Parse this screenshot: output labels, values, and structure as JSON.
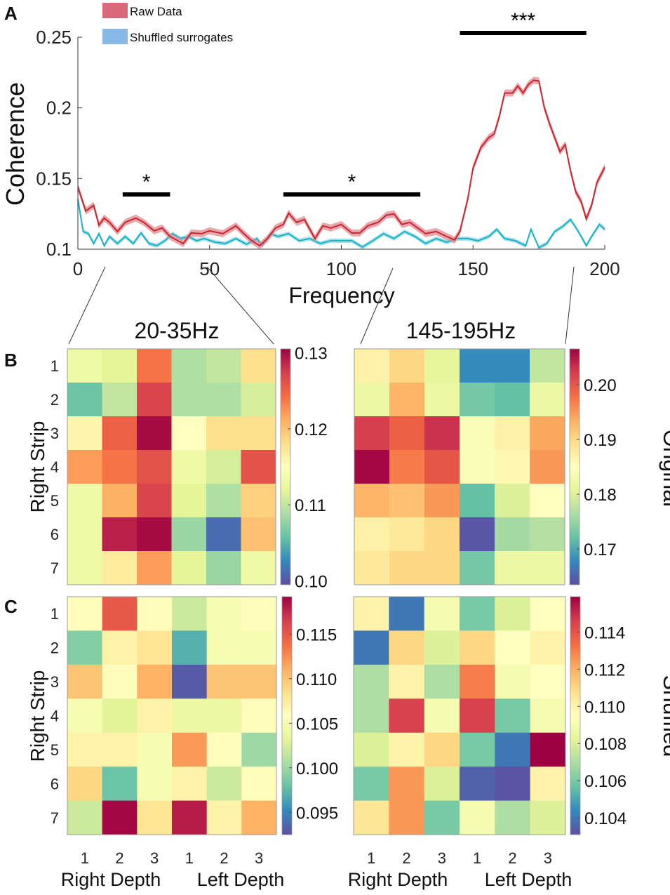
{
  "panel_labels": {
    "a": "A",
    "b": "B",
    "c": "C"
  },
  "colors": {
    "raw": "#c8262e",
    "raw_band": "#e08a90",
    "shuffled": "#17b3c8",
    "shuffled_band": "#8fd6e2",
    "legend_raw": "#d9697a",
    "legend_shuffled": "#86b9e6"
  },
  "colormap": [
    "#5e4fa2",
    "#3288bd",
    "#66c2a5",
    "#abdda4",
    "#e6f598",
    "#ffffbf",
    "#fee08b",
    "#fdae61",
    "#f46d43",
    "#d53e4f",
    "#9e0142"
  ],
  "chart_data": [
    {
      "type": "line",
      "xlabel": "Frequency",
      "ylabel": "Coherence",
      "xlim": [
        0,
        200
      ],
      "ylim": [
        0.1,
        0.25
      ],
      "xticks": [
        "0",
        "50",
        "100",
        "150",
        "200"
      ],
      "yticks": [
        "0.1",
        "0.15",
        "0.2",
        "0.25"
      ],
      "legend": [
        "Raw Data",
        "Shuffled surrogates"
      ],
      "legend_position": "top-left",
      "significance": [
        {
          "label": "*",
          "from": 17,
          "to": 35
        },
        {
          "label": "*",
          "from": 78,
          "to": 130
        },
        {
          "label": "***",
          "from": 145,
          "to": 193
        }
      ],
      "series": [
        {
          "name": "Raw Data",
          "band": 0.0025,
          "x": [
            0,
            3,
            6,
            8,
            10,
            12,
            15,
            18,
            22,
            25,
            29,
            32,
            35,
            40,
            43,
            47,
            50,
            55,
            60,
            63,
            66,
            69,
            72,
            75,
            78,
            80,
            83,
            86,
            90,
            93,
            96,
            100,
            104,
            107,
            110,
            114,
            117,
            120,
            123,
            126,
            129,
            132,
            136,
            140,
            143,
            145,
            148,
            150,
            153,
            156,
            158,
            160,
            162,
            165,
            167,
            169,
            171,
            173,
            175,
            177,
            179,
            181,
            183,
            185,
            187,
            189,
            191,
            193,
            195,
            197,
            200
          ],
          "y": [
            0.144,
            0.127,
            0.131,
            0.117,
            0.122,
            0.119,
            0.1125,
            0.119,
            0.122,
            0.119,
            0.113,
            0.115,
            0.109,
            0.104,
            0.1115,
            0.111,
            0.113,
            0.111,
            0.1165,
            0.111,
            0.106,
            0.1025,
            0.1075,
            0.115,
            0.1175,
            0.1255,
            0.119,
            0.121,
            0.1075,
            0.1165,
            0.115,
            0.1175,
            0.1115,
            0.1115,
            0.1165,
            0.119,
            0.124,
            0.125,
            0.1175,
            0.119,
            0.115,
            0.111,
            0.1125,
            0.109,
            0.1065,
            0.1125,
            0.1355,
            0.1575,
            0.172,
            0.179,
            0.1815,
            0.194,
            0.2105,
            0.2105,
            0.2155,
            0.2105,
            0.2165,
            0.2195,
            0.219,
            0.2005,
            0.189,
            0.179,
            0.169,
            0.174,
            0.1555,
            0.1405,
            0.134,
            0.1215,
            0.131,
            0.147,
            0.158
          ]
        },
        {
          "name": "Shuffled surrogates",
          "band": 0.0015,
          "x": [
            0,
            2,
            4,
            6,
            8,
            10,
            12,
            15,
            18,
            21,
            24,
            27,
            30,
            33,
            36,
            39,
            42,
            45,
            48,
            52,
            56,
            60,
            64,
            68,
            70,
            73,
            76,
            80,
            84,
            88,
            92,
            96,
            100,
            104,
            108,
            112,
            116,
            120,
            124,
            128,
            132,
            136,
            140,
            144,
            148,
            152,
            156,
            159,
            162,
            166,
            170,
            172,
            175,
            178,
            181,
            184,
            187,
            190,
            193,
            195,
            198,
            200
          ],
          "y": [
            0.1355,
            0.1125,
            0.111,
            0.104,
            0.111,
            0.1025,
            0.109,
            0.104,
            0.109,
            0.104,
            0.1115,
            0.104,
            0.1025,
            0.106,
            0.111,
            0.1075,
            0.109,
            0.106,
            0.1075,
            0.105,
            0.104,
            0.1075,
            0.1035,
            0.1075,
            0.1025,
            0.111,
            0.109,
            0.111,
            0.106,
            0.1075,
            0.104,
            0.106,
            0.106,
            0.106,
            0.1015,
            0.106,
            0.111,
            0.1075,
            0.1125,
            0.109,
            0.104,
            0.1075,
            0.105,
            0.1075,
            0.1075,
            0.106,
            0.109,
            0.114,
            0.1075,
            0.106,
            0.1025,
            0.114,
            0.101,
            0.104,
            0.1125,
            0.116,
            0.121,
            0.1125,
            0.1025,
            0.109,
            0.1175,
            0.114
          ]
        }
      ]
    },
    {
      "type": "heatmap",
      "id": "b-left",
      "title": "20-35Hz",
      "row": "Original",
      "ylabel": "Right Strip",
      "row_labels": [
        "1",
        "2",
        "3",
        "4",
        "5",
        "6",
        "7"
      ],
      "col_labels": [
        "1",
        "2",
        "3",
        "1",
        "2",
        "3"
      ],
      "col_groups": [
        "Right Depth",
        "Left Depth"
      ],
      "clim": [
        0.0995,
        0.1305
      ],
      "cbar_ticks": [
        "0.10",
        "0.11",
        "0.12",
        "0.13"
      ],
      "values": [
        [
          0.113,
          0.112,
          0.124,
          0.109,
          0.11,
          0.118
        ],
        [
          0.106,
          0.11,
          0.127,
          0.109,
          0.109,
          0.111
        ],
        [
          0.116,
          0.125,
          0.13,
          0.115,
          0.118,
          0.118
        ],
        [
          0.122,
          0.124,
          0.126,
          0.113,
          0.111,
          0.126
        ],
        [
          0.113,
          0.121,
          0.127,
          0.112,
          0.109,
          0.119
        ],
        [
          0.113,
          0.129,
          0.13,
          0.108,
          0.101,
          0.12
        ],
        [
          0.113,
          0.117,
          0.122,
          0.112,
          0.108,
          0.113
        ]
      ]
    },
    {
      "type": "heatmap",
      "id": "b-right",
      "title": "145-195Hz",
      "row": "Original",
      "row_labels": [
        "1",
        "2",
        "3",
        "4",
        "5",
        "6",
        "7"
      ],
      "col_labels": [
        "1",
        "2",
        "3",
        "1",
        "2",
        "3"
      ],
      "col_groups": [
        "Right Depth",
        "Left Depth"
      ],
      "clim": [
        0.1635,
        0.2065
      ],
      "cbar_ticks": [
        "0.17",
        "0.18",
        "0.19",
        "0.20"
      ],
      "values": [
        [
          0.187,
          0.19,
          0.181,
          0.168,
          0.168,
          0.178
        ],
        [
          0.182,
          0.193,
          0.182,
          0.173,
          0.172,
          0.182
        ],
        [
          0.202,
          0.199,
          0.203,
          0.184,
          0.187,
          0.194
        ],
        [
          0.206,
          0.197,
          0.2,
          0.184,
          0.186,
          0.195
        ],
        [
          0.193,
          0.192,
          0.195,
          0.172,
          0.18,
          0.185
        ],
        [
          0.187,
          0.188,
          0.19,
          0.164,
          0.176,
          0.177
        ],
        [
          0.188,
          0.19,
          0.19,
          0.173,
          0.182,
          0.182
        ]
      ]
    },
    {
      "type": "heatmap",
      "id": "c-left",
      "title": "",
      "row": "Shuffled",
      "ylabel": "Right Strip",
      "row_labels": [
        "1",
        "2",
        "3",
        "4",
        "5",
        "6",
        "7"
      ],
      "col_labels": [
        "1",
        "2",
        "3",
        "1",
        "2",
        "3"
      ],
      "col_groups": [
        "Right Depth",
        "Left Depth"
      ],
      "clim": [
        0.0925,
        0.1192
      ],
      "cbar_ticks": [
        "0.095",
        "0.100",
        "0.105",
        "0.110",
        "0.115"
      ],
      "values": [
        [
          0.106,
          0.115,
          0.106,
          0.102,
          0.105,
          0.106
        ],
        [
          0.099,
          0.107,
          0.108,
          0.097,
          0.105,
          0.105
        ],
        [
          0.11,
          0.106,
          0.111,
          0.093,
          0.11,
          0.11
        ],
        [
          0.105,
          0.103,
          0.107,
          0.104,
          0.104,
          0.106
        ],
        [
          0.107,
          0.107,
          0.105,
          0.112,
          0.106,
          0.1
        ],
        [
          0.109,
          0.098,
          0.105,
          0.107,
          0.102,
          0.106
        ],
        [
          0.102,
          0.119,
          0.108,
          0.118,
          0.107,
          0.111
        ]
      ]
    },
    {
      "type": "heatmap",
      "id": "c-right",
      "title": "",
      "row": "Shuffled",
      "row_labels": [
        "1",
        "2",
        "3",
        "4",
        "5",
        "6",
        "7"
      ],
      "col_labels": [
        "1",
        "2",
        "3",
        "1",
        "2",
        "3"
      ],
      "col_groups": [
        "Right Depth",
        "Left Depth"
      ],
      "clim": [
        0.1031,
        0.1159
      ],
      "cbar_ticks": [
        "0.104",
        "0.106",
        "0.108",
        "0.110",
        "0.112",
        "0.114"
      ],
      "values": [
        [
          0.11,
          0.104,
          0.109,
          0.106,
          0.108,
          0.1095
        ],
        [
          0.104,
          0.111,
          0.108,
          0.111,
          0.1095,
          0.11
        ],
        [
          0.107,
          0.11,
          0.107,
          0.113,
          0.109,
          0.1095
        ],
        [
          0.107,
          0.1145,
          0.109,
          0.1145,
          0.106,
          0.109
        ],
        [
          0.108,
          0.11,
          0.111,
          0.106,
          0.104,
          0.116
        ],
        [
          0.106,
          0.1125,
          0.108,
          0.1035,
          0.1032,
          0.11
        ],
        [
          0.1105,
          0.1125,
          0.106,
          0.109,
          0.107,
          0.108
        ]
      ]
    }
  ]
}
